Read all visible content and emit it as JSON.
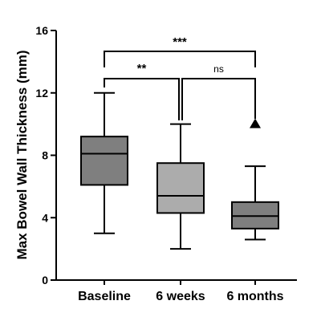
{
  "chart_data": {
    "type": "box",
    "ylabel": "Max Bowel Wall Thickness (mm)",
    "xlabel": "",
    "ylim": [
      0,
      16
    ],
    "yticks": [
      "0",
      "4",
      "8",
      "12",
      "16"
    ],
    "grid": false,
    "categories": [
      "Baseline",
      "6 weeks",
      "6 months"
    ],
    "boxes": [
      {
        "category": "Baseline",
        "min": 3.0,
        "q1": 6.1,
        "median": 8.1,
        "q3": 9.2,
        "max": 12.0,
        "color": "#7f7f7f",
        "outliers": []
      },
      {
        "category": "6 weeks",
        "min": 2.0,
        "q1": 4.3,
        "median": 5.4,
        "q3": 7.5,
        "max": 10.0,
        "color": "#acacac",
        "outliers": []
      },
      {
        "category": "6 months",
        "min": 2.6,
        "q1": 3.3,
        "median": 4.1,
        "q3": 5.0,
        "max": 7.3,
        "color": "#7f7f7f",
        "outliers": [
          10.0
        ]
      }
    ],
    "comparisons": [
      {
        "from": "Baseline",
        "to": "6 months",
        "label": "***"
      },
      {
        "from": "Baseline",
        "to": "6 weeks",
        "label": "**"
      },
      {
        "from": "6 weeks",
        "to": "6 months",
        "label": "ns"
      }
    ]
  }
}
